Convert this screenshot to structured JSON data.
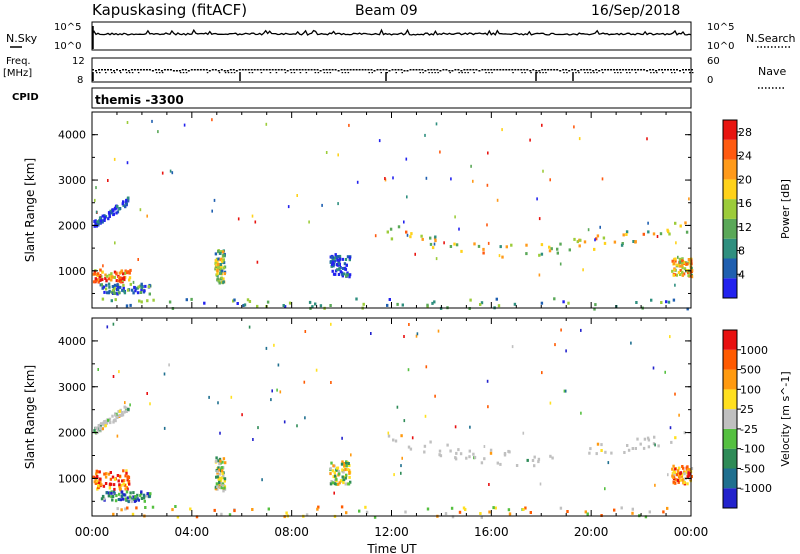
{
  "header": {
    "station": "Kapuskasing (fitACF)",
    "beam": "Beam 09",
    "date": "16/Sep/2018"
  },
  "strips": {
    "nsky_label": "N.Sky",
    "nsearch_label": "N.Search",
    "noise_ticks_left": [
      "10^5",
      "10^0"
    ],
    "noise_ticks_right": [
      "10^5",
      "10^0"
    ],
    "freq_label_1": "Freq.",
    "freq_label_2": "[MHz]",
    "freq_ticks": [
      "12",
      "8"
    ],
    "nave_label": "Nave",
    "nave_ticks": [
      "60",
      "0"
    ],
    "cpid_label": "CPID",
    "cpid_value": "themis -3300"
  },
  "chart_data": [
    {
      "type": "heatmap",
      "panel": "power",
      "ylabel": "Slant Range [km]",
      "xlabel": "",
      "x_ticks": [
        "00:00",
        "04:00",
        "08:00",
        "12:00",
        "16:00",
        "20:00",
        "00:00"
      ],
      "xlim_hours": [
        0,
        24
      ],
      "y_ticks": [
        1000,
        2000,
        3000,
        4000
      ],
      "ylim": [
        180,
        4500
      ],
      "colorbar": {
        "label": "Power [dB]",
        "ticks": [
          4,
          8,
          12,
          16,
          20,
          24,
          28
        ],
        "range": [
          0,
          30
        ],
        "colors": [
          "#2222ee",
          "#1f5fb0",
          "#2f8f7f",
          "#5aa858",
          "#9ccc3a",
          "#ffd21a",
          "#ff9a1a",
          "#ff5a10",
          "#e81410"
        ]
      },
      "scatter_regions": [
        {
          "x": [
            0.05,
            1.45
          ],
          "y": [
            1850,
            2650
          ],
          "level": 0.1,
          "note": "arc"
        },
        {
          "x": [
            0.0,
            1.5
          ],
          "y": [
            780,
            1050
          ],
          "level": 0.75
        },
        {
          "x": [
            0.3,
            2.3
          ],
          "y": [
            520,
            740
          ],
          "level": 0.25
        },
        {
          "x": [
            4.9,
            5.3
          ],
          "y": [
            750,
            1500
          ],
          "level": 0.45
        },
        {
          "x": [
            9.5,
            10.3
          ],
          "y": [
            900,
            1400
          ],
          "level": 0.1
        },
        {
          "x": [
            11.8,
            23.8
          ],
          "y": [
            1300,
            2100
          ],
          "level": 0.55,
          "note": "band"
        },
        {
          "x": [
            23.2,
            24.0
          ],
          "y": [
            900,
            1300
          ],
          "level": 0.6
        },
        {
          "x": [
            0.0,
            24.0
          ],
          "y": [
            180,
            420
          ],
          "level": 0.3,
          "note": "ground scatter"
        }
      ]
    },
    {
      "type": "heatmap",
      "panel": "velocity",
      "ylabel": "Slant Range [km]",
      "xlabel": "Time UT",
      "x_ticks": [
        "00:00",
        "04:00",
        "08:00",
        "12:00",
        "16:00",
        "20:00",
        "00:00"
      ],
      "xlim_hours": [
        0,
        24
      ],
      "y_ticks": [
        1000,
        2000,
        3000,
        4000
      ],
      "ylim": [
        180,
        4500
      ],
      "colorbar": {
        "label": "Velocity [m s^-1]",
        "ticks": [
          1000,
          500,
          100,
          25,
          -25,
          -100,
          -500,
          -1000
        ],
        "colors": [
          "#2222cc",
          "#1f6f8f",
          "#2e8b57",
          "#55c040",
          "#c0c0c0",
          "#ffe020",
          "#ff9a10",
          "#ff5a00",
          "#e81010"
        ]
      },
      "scatter_regions": [
        {
          "x": [
            0.05,
            1.45
          ],
          "y": [
            1850,
            2650
          ],
          "level": 0.5,
          "note": "grey arc"
        },
        {
          "x": [
            0.0,
            1.5
          ],
          "y": [
            780,
            1200
          ],
          "level": 0.8
        },
        {
          "x": [
            0.3,
            2.3
          ],
          "y": [
            520,
            740
          ],
          "level": 0.25
        },
        {
          "x": [
            4.9,
            5.3
          ],
          "y": [
            750,
            1500
          ],
          "level": 0.5
        },
        {
          "x": [
            9.5,
            10.3
          ],
          "y": [
            900,
            1400
          ],
          "level": 0.5
        },
        {
          "x": [
            11.8,
            23.8
          ],
          "y": [
            1300,
            2100
          ],
          "level": 0.5,
          "note": "grey band"
        },
        {
          "x": [
            23.2,
            24.0
          ],
          "y": [
            900,
            1300
          ],
          "level": 0.75
        },
        {
          "x": [
            0.0,
            24.0
          ],
          "y": [
            180,
            420
          ],
          "level": 0.6,
          "note": "ground scatter"
        }
      ]
    }
  ]
}
